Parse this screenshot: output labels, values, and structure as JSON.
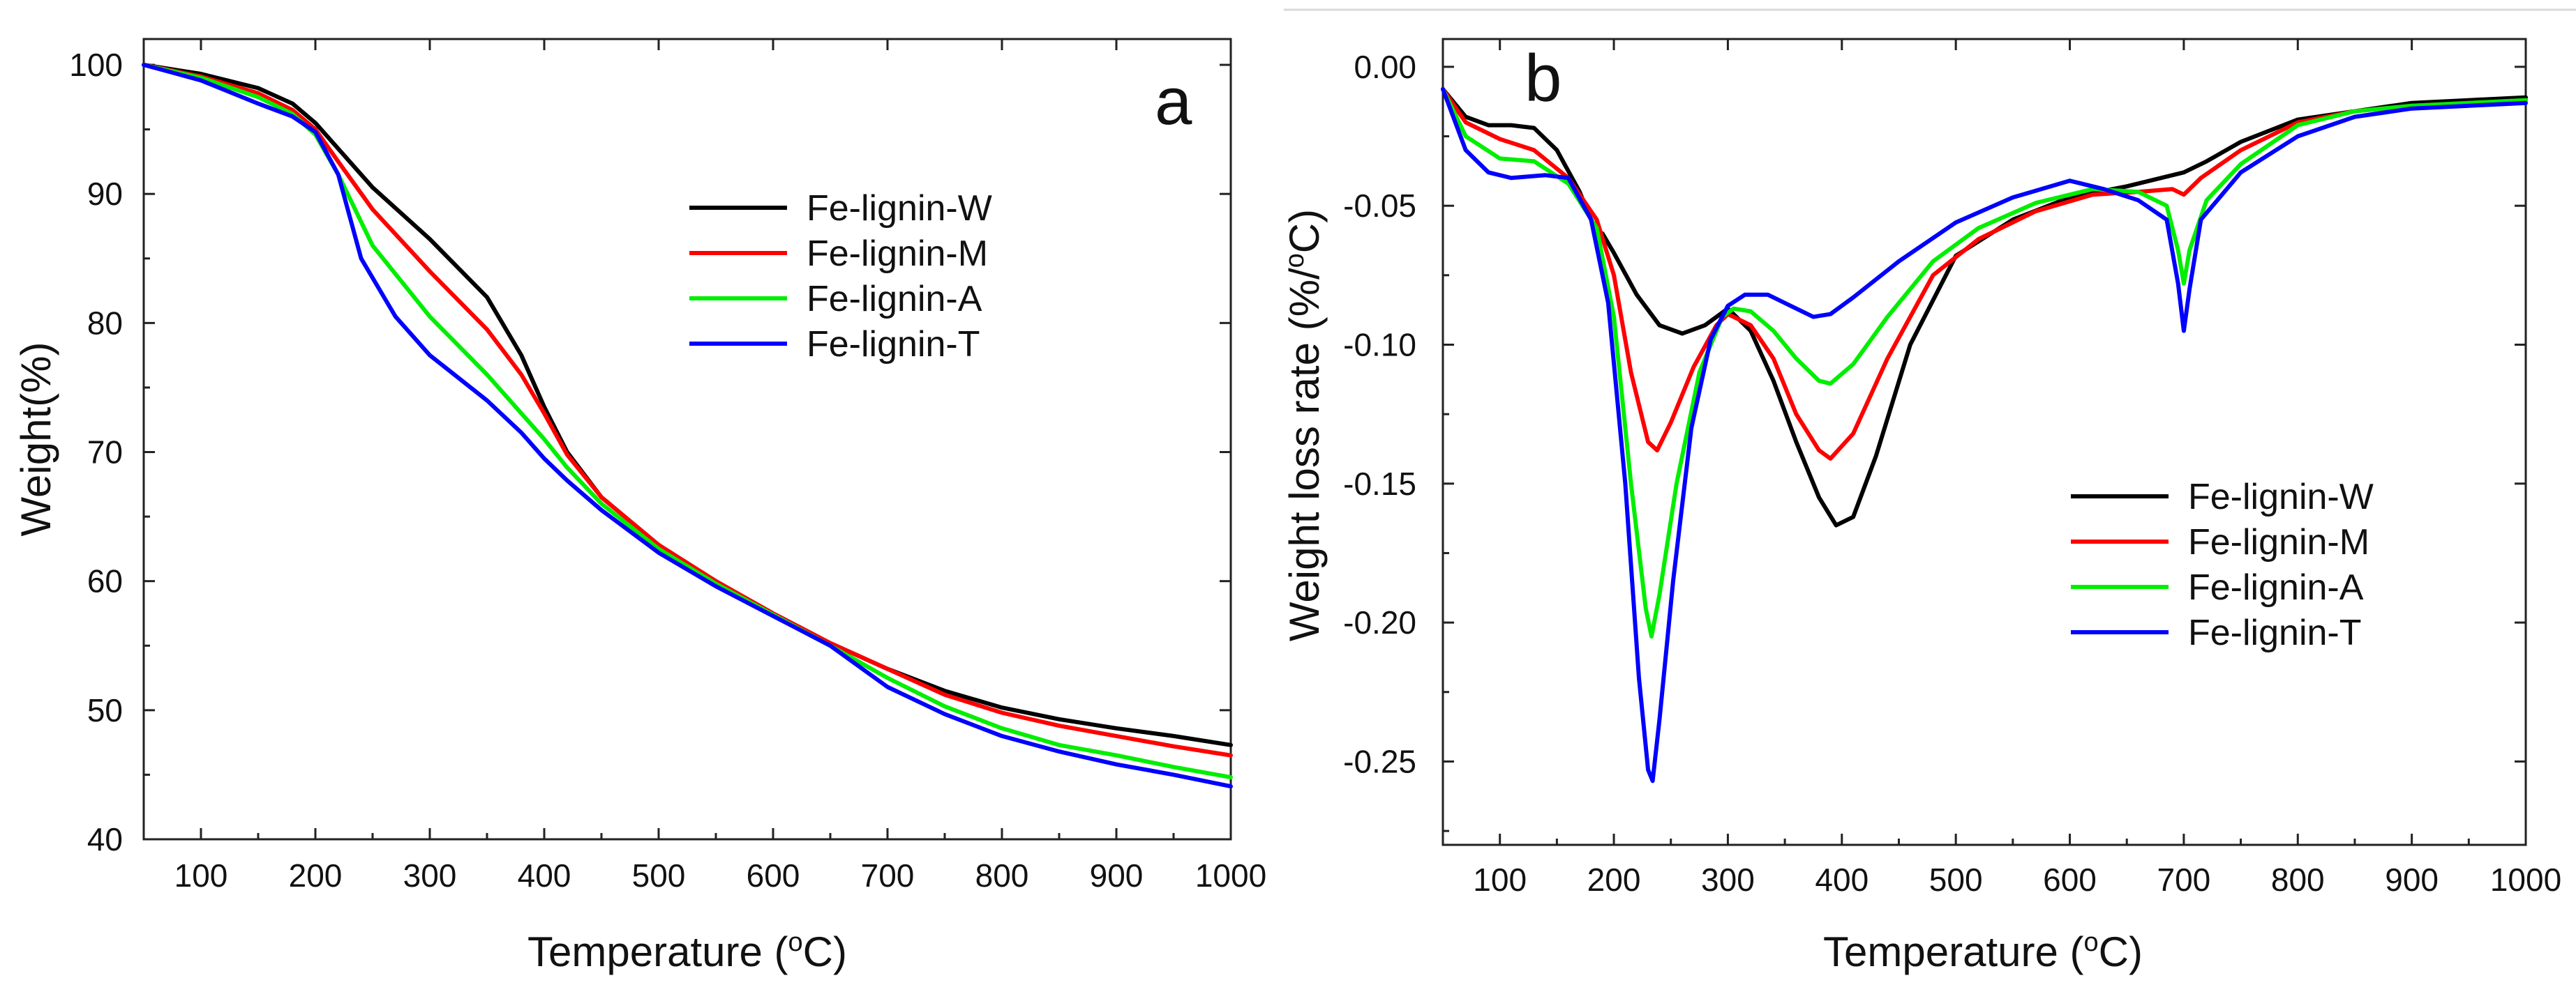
{
  "chart_data": [
    {
      "type": "line",
      "panel_label": "a",
      "title": "",
      "xlabel": "Temperature",
      "xunit": "C",
      "ylabel": "Weight(%)",
      "xlim": [
        50,
        1000
      ],
      "ylim": [
        40,
        102
      ],
      "xticks": [
        100,
        200,
        300,
        400,
        500,
        600,
        700,
        800,
        900,
        1000
      ],
      "yticks": [
        40,
        50,
        60,
        70,
        80,
        90,
        100
      ],
      "xtick_labels": [
        "100",
        "200",
        "300",
        "400",
        "500",
        "600",
        "700",
        "800",
        "900",
        "1000"
      ],
      "ytick_labels": [
        "40",
        "50",
        "60",
        "70",
        "80",
        "90",
        "100"
      ],
      "legend": [
        "Fe-lignin-W",
        "Fe-lignin-M",
        "Fe-lignin-A",
        "Fe-lignin-T"
      ],
      "series": [
        {
          "name": "Fe-lignin-W",
          "color": "#000000",
          "points": [
            [
              50,
              100
            ],
            [
              100,
              99.3
            ],
            [
              150,
              98.2
            ],
            [
              180,
              97
            ],
            [
              200,
              95.5
            ],
            [
              220,
              93.5
            ],
            [
              250,
              90.5
            ],
            [
              300,
              86.5
            ],
            [
              350,
              82
            ],
            [
              380,
              77.5
            ],
            [
              400,
              73.5
            ],
            [
              420,
              70
            ],
            [
              450,
              66.5
            ],
            [
              500,
              62.8
            ],
            [
              550,
              60
            ],
            [
              600,
              57.5
            ],
            [
              650,
              55.2
            ],
            [
              700,
              53.2
            ],
            [
              750,
              51.5
            ],
            [
              800,
              50.2
            ],
            [
              850,
              49.3
            ],
            [
              900,
              48.6
            ],
            [
              950,
              48
            ],
            [
              1000,
              47.3
            ]
          ]
        },
        {
          "name": "Fe-lignin-M",
          "color": "#ff0000",
          "points": [
            [
              50,
              100
            ],
            [
              100,
              99.1
            ],
            [
              150,
              97.8
            ],
            [
              180,
              96.5
            ],
            [
              200,
              95
            ],
            [
              220,
              92.5
            ],
            [
              250,
              88.8
            ],
            [
              300,
              84
            ],
            [
              350,
              79.5
            ],
            [
              380,
              76
            ],
            [
              400,
              73
            ],
            [
              420,
              69.8
            ],
            [
              450,
              66.5
            ],
            [
              500,
              62.8
            ],
            [
              550,
              60
            ],
            [
              600,
              57.5
            ],
            [
              650,
              55.2
            ],
            [
              700,
              53.2
            ],
            [
              750,
              51.2
            ],
            [
              800,
              49.8
            ],
            [
              850,
              48.8
            ],
            [
              900,
              48
            ],
            [
              950,
              47.2
            ],
            [
              1000,
              46.5
            ]
          ]
        },
        {
          "name": "Fe-lignin-A",
          "color": "#00ee00",
          "points": [
            [
              50,
              100
            ],
            [
              100,
              99
            ],
            [
              150,
              97.5
            ],
            [
              180,
              96.2
            ],
            [
              200,
              94.6
            ],
            [
              220,
              91.5
            ],
            [
              250,
              86
            ],
            [
              300,
              80.5
            ],
            [
              350,
              76
            ],
            [
              380,
              73
            ],
            [
              400,
              71
            ],
            [
              420,
              68.8
            ],
            [
              450,
              66
            ],
            [
              500,
              62.5
            ],
            [
              550,
              59.8
            ],
            [
              600,
              57.4
            ],
            [
              650,
              55
            ],
            [
              700,
              52.5
            ],
            [
              750,
              50.3
            ],
            [
              800,
              48.6
            ],
            [
              850,
              47.3
            ],
            [
              900,
              46.5
            ],
            [
              950,
              45.6
            ],
            [
              1000,
              44.8
            ]
          ]
        },
        {
          "name": "Fe-lignin-T",
          "color": "#0000ff",
          "points": [
            [
              50,
              100
            ],
            [
              100,
              98.8
            ],
            [
              150,
              97
            ],
            [
              180,
              96
            ],
            [
              200,
              94.8
            ],
            [
              220,
              91.5
            ],
            [
              240,
              85
            ],
            [
              270,
              80.5
            ],
            [
              300,
              77.5
            ],
            [
              350,
              74
            ],
            [
              380,
              71.5
            ],
            [
              400,
              69.5
            ],
            [
              420,
              67.8
            ],
            [
              450,
              65.5
            ],
            [
              500,
              62.2
            ],
            [
              550,
              59.6
            ],
            [
              600,
              57.3
            ],
            [
              650,
              55
            ],
            [
              700,
              51.8
            ],
            [
              750,
              49.7
            ],
            [
              800,
              48
            ],
            [
              850,
              46.8
            ],
            [
              900,
              45.8
            ],
            [
              950,
              45
            ],
            [
              1000,
              44.1
            ]
          ]
        }
      ]
    },
    {
      "type": "line",
      "panel_label": "b",
      "title": "",
      "xlabel": "Temperature",
      "xunit": "C",
      "ylabel": "Weight loss rate (%/",
      "yunit": "C)",
      "xlim": [
        50,
        1000
      ],
      "ylim": [
        -0.28,
        0.01
      ],
      "xticks": [
        100,
        200,
        300,
        400,
        500,
        600,
        700,
        800,
        900,
        1000
      ],
      "yticks": [
        0,
        -0.05,
        -0.1,
        -0.15,
        -0.2,
        -0.25
      ],
      "xtick_labels": [
        "100",
        "200",
        "300",
        "400",
        "500",
        "600",
        "700",
        "800",
        "900",
        "1000"
      ],
      "ytick_labels": [
        "0.00",
        "-0.05",
        "-0.10",
        "-0.15",
        "-0.20",
        "-0.25"
      ],
      "legend": [
        "Fe-lignin-W",
        "Fe-lignin-M",
        "Fe-lignin-A",
        "Fe-lignin-T"
      ],
      "series": [
        {
          "name": "Fe-lignin-W",
          "color": "#000000",
          "points": [
            [
              50,
              -0.008
            ],
            [
              70,
              -0.018
            ],
            [
              90,
              -0.021
            ],
            [
              110,
              -0.021
            ],
            [
              130,
              -0.022
            ],
            [
              150,
              -0.03
            ],
            [
              170,
              -0.045
            ],
            [
              185,
              -0.06
            ],
            [
              190,
              -0.06
            ],
            [
              200,
              -0.067
            ],
            [
              220,
              -0.082
            ],
            [
              240,
              -0.093
            ],
            [
              260,
              -0.096
            ],
            [
              280,
              -0.093
            ],
            [
              300,
              -0.087
            ],
            [
              320,
              -0.095
            ],
            [
              340,
              -0.113
            ],
            [
              360,
              -0.135
            ],
            [
              380,
              -0.155
            ],
            [
              395,
              -0.165
            ],
            [
              410,
              -0.162
            ],
            [
              430,
              -0.14
            ],
            [
              460,
              -0.1
            ],
            [
              500,
              -0.068
            ],
            [
              550,
              -0.055
            ],
            [
              600,
              -0.047
            ],
            [
              650,
              -0.043
            ],
            [
              680,
              -0.04
            ],
            [
              700,
              -0.038
            ],
            [
              720,
              -0.034
            ],
            [
              750,
              -0.027
            ],
            [
              800,
              -0.019
            ],
            [
              850,
              -0.016
            ],
            [
              900,
              -0.013
            ],
            [
              950,
              -0.012
            ],
            [
              1000,
              -0.011
            ]
          ]
        },
        {
          "name": "Fe-lignin-M",
          "color": "#ff0000",
          "points": [
            [
              50,
              -0.008
            ],
            [
              70,
              -0.02
            ],
            [
              100,
              -0.026
            ],
            [
              130,
              -0.03
            ],
            [
              160,
              -0.04
            ],
            [
              185,
              -0.055
            ],
            [
              200,
              -0.075
            ],
            [
              215,
              -0.11
            ],
            [
              230,
              -0.135
            ],
            [
              238,
              -0.138
            ],
            [
              250,
              -0.128
            ],
            [
              270,
              -0.108
            ],
            [
              290,
              -0.093
            ],
            [
              300,
              -0.089
            ],
            [
              320,
              -0.093
            ],
            [
              340,
              -0.105
            ],
            [
              360,
              -0.125
            ],
            [
              380,
              -0.138
            ],
            [
              390,
              -0.141
            ],
            [
              410,
              -0.132
            ],
            [
              440,
              -0.105
            ],
            [
              480,
              -0.075
            ],
            [
              520,
              -0.062
            ],
            [
              570,
              -0.052
            ],
            [
              620,
              -0.046
            ],
            [
              660,
              -0.045
            ],
            [
              690,
              -0.044
            ],
            [
              700,
              -0.046
            ],
            [
              715,
              -0.04
            ],
            [
              750,
              -0.03
            ],
            [
              800,
              -0.02
            ],
            [
              850,
              -0.016
            ],
            [
              900,
              -0.014
            ],
            [
              950,
              -0.013
            ],
            [
              1000,
              -0.012
            ]
          ]
        },
        {
          "name": "Fe-lignin-A",
          "color": "#00ee00",
          "points": [
            [
              50,
              -0.008
            ],
            [
              70,
              -0.025
            ],
            [
              100,
              -0.033
            ],
            [
              130,
              -0.034
            ],
            [
              160,
              -0.042
            ],
            [
              185,
              -0.058
            ],
            [
              200,
              -0.09
            ],
            [
              215,
              -0.15
            ],
            [
              228,
              -0.195
            ],
            [
              233,
              -0.205
            ],
            [
              240,
              -0.19
            ],
            [
              255,
              -0.15
            ],
            [
              275,
              -0.11
            ],
            [
              295,
              -0.09
            ],
            [
              305,
              -0.087
            ],
            [
              320,
              -0.088
            ],
            [
              340,
              -0.095
            ],
            [
              360,
              -0.105
            ],
            [
              380,
              -0.113
            ],
            [
              390,
              -0.114
            ],
            [
              410,
              -0.107
            ],
            [
              440,
              -0.09
            ],
            [
              480,
              -0.07
            ],
            [
              520,
              -0.058
            ],
            [
              570,
              -0.049
            ],
            [
              620,
              -0.044
            ],
            [
              660,
              -0.045
            ],
            [
              685,
              -0.05
            ],
            [
              695,
              -0.066
            ],
            [
              700,
              -0.078
            ],
            [
              705,
              -0.066
            ],
            [
              720,
              -0.048
            ],
            [
              750,
              -0.035
            ],
            [
              800,
              -0.021
            ],
            [
              850,
              -0.016
            ],
            [
              900,
              -0.014
            ],
            [
              950,
              -0.013
            ],
            [
              1000,
              -0.012
            ]
          ]
        },
        {
          "name": "Fe-lignin-T",
          "color": "#0000ff",
          "points": [
            [
              50,
              -0.008
            ],
            [
              70,
              -0.03
            ],
            [
              90,
              -0.038
            ],
            [
              110,
              -0.04
            ],
            [
              140,
              -0.039
            ],
            [
              160,
              -0.04
            ],
            [
              180,
              -0.055
            ],
            [
              195,
              -0.085
            ],
            [
              210,
              -0.15
            ],
            [
              222,
              -0.22
            ],
            [
              230,
              -0.253
            ],
            [
              234,
              -0.257
            ],
            [
              240,
              -0.235
            ],
            [
              252,
              -0.185
            ],
            [
              268,
              -0.13
            ],
            [
              285,
              -0.098
            ],
            [
              300,
              -0.086
            ],
            [
              315,
              -0.082
            ],
            [
              335,
              -0.082
            ],
            [
              355,
              -0.086
            ],
            [
              375,
              -0.09
            ],
            [
              390,
              -0.089
            ],
            [
              410,
              -0.083
            ],
            [
              450,
              -0.07
            ],
            [
              500,
              -0.056
            ],
            [
              550,
              -0.047
            ],
            [
              600,
              -0.041
            ],
            [
              630,
              -0.044
            ],
            [
              660,
              -0.048
            ],
            [
              685,
              -0.055
            ],
            [
              695,
              -0.078
            ],
            [
              700,
              -0.095
            ],
            [
              705,
              -0.08
            ],
            [
              715,
              -0.055
            ],
            [
              750,
              -0.038
            ],
            [
              800,
              -0.025
            ],
            [
              850,
              -0.018
            ],
            [
              900,
              -0.015
            ],
            [
              950,
              -0.014
            ],
            [
              1000,
              -0.013
            ]
          ]
        }
      ]
    }
  ]
}
